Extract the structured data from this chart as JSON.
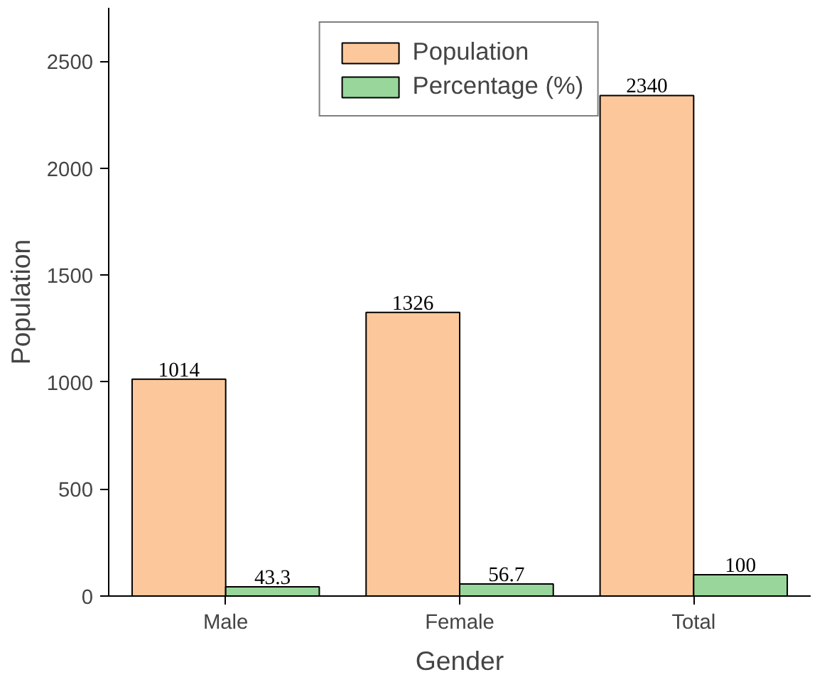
{
  "chart_data": {
    "type": "bar",
    "xlabel": "Gender",
    "ylabel": "Population",
    "categories": [
      "Male",
      "Female",
      "Total"
    ],
    "series": [
      {
        "name": "Population",
        "color": "#fcc89b",
        "values": [
          1014,
          1326,
          2340
        ]
      },
      {
        "name": "Percentage (%)",
        "color": "#98d69b",
        "values": [
          43.3,
          56.7,
          100
        ]
      }
    ],
    "ylim": [
      0,
      2750
    ],
    "yticks": [
      0,
      500,
      1000,
      1500,
      2000,
      2500
    ],
    "grid": false,
    "legend": "top",
    "data_labels": true
  }
}
